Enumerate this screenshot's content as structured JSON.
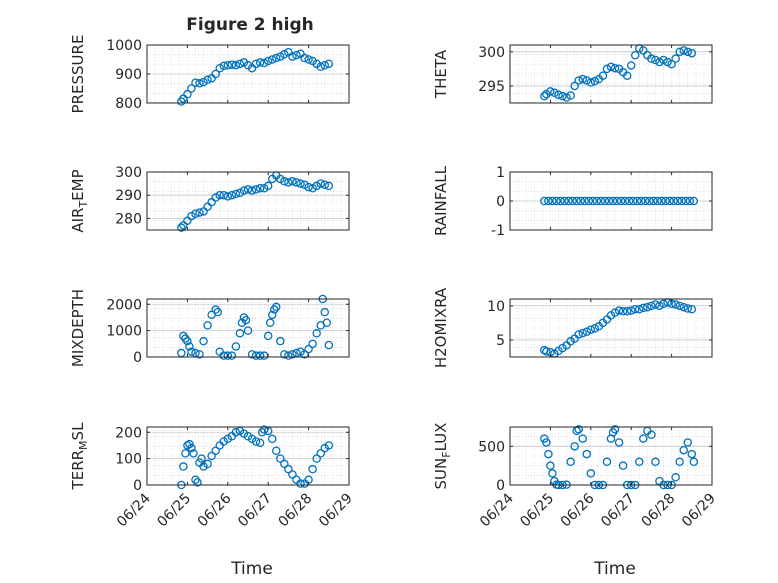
{
  "figure": {
    "title": "Figure 2 high"
  },
  "colors": {
    "marker": "#0072BD",
    "axis": "#262626",
    "grid": "#d9d9d9"
  },
  "chart_data": [
    {
      "type": "scatter",
      "ylabel": "PRESSURE",
      "xlim": [
        0,
        5
      ],
      "ylim": [
        800,
        1000
      ],
      "yticks": [
        800,
        900,
        1000
      ],
      "xticks": [],
      "xlabel": "",
      "grid": true,
      "x": [
        0.85,
        0.9,
        1.0,
        1.1,
        1.2,
        1.3,
        1.4,
        1.5,
        1.6,
        1.7,
        1.8,
        1.9,
        2.0,
        2.1,
        2.2,
        2.3,
        2.4,
        2.5,
        2.6,
        2.7,
        2.8,
        2.9,
        3.0,
        3.1,
        3.2,
        3.3,
        3.4,
        3.5,
        3.6,
        3.7,
        3.8,
        3.9,
        4.0,
        4.1,
        4.2,
        4.3,
        4.4,
        4.5
      ],
      "y": [
        805,
        815,
        830,
        850,
        870,
        868,
        872,
        880,
        885,
        900,
        920,
        928,
        930,
        932,
        930,
        935,
        940,
        930,
        920,
        935,
        940,
        938,
        945,
        950,
        955,
        960,
        968,
        975,
        960,
        965,
        970,
        955,
        950,
        945,
        935,
        925,
        930,
        935
      ]
    },
    {
      "type": "scatter",
      "ylabel": "THETA",
      "xlim": [
        0,
        5
      ],
      "ylim": [
        292.5,
        301
      ],
      "yticks": [
        295,
        300
      ],
      "xticks": [],
      "xlabel": "",
      "grid": true,
      "x": [
        0.85,
        0.9,
        1.0,
        1.1,
        1.2,
        1.3,
        1.4,
        1.5,
        1.6,
        1.7,
        1.8,
        1.9,
        2.0,
        2.1,
        2.2,
        2.3,
        2.4,
        2.5,
        2.6,
        2.7,
        2.8,
        2.9,
        3.0,
        3.1,
        3.2,
        3.3,
        3.4,
        3.5,
        3.6,
        3.7,
        3.8,
        3.9,
        4.0,
        4.1,
        4.2,
        4.3,
        4.4,
        4.5
      ],
      "y": [
        293.5,
        293.8,
        294.2,
        294.0,
        293.7,
        293.5,
        293.3,
        293.6,
        295.0,
        295.8,
        296.0,
        295.8,
        295.5,
        295.7,
        296.0,
        296.5,
        297.5,
        297.8,
        297.6,
        297.5,
        297.0,
        296.5,
        298.0,
        299.5,
        300.5,
        300.2,
        299.5,
        299.0,
        298.8,
        298.5,
        298.8,
        298.5,
        298.2,
        299.0,
        300.0,
        300.2,
        300.0,
        299.8
      ]
    },
    {
      "type": "scatter",
      "ylabel": "AIR_TEMP",
      "xlim": [
        0,
        5
      ],
      "ylim": [
        275,
        300
      ],
      "yticks": [
        280,
        290,
        300
      ],
      "xticks": [],
      "xlabel": "",
      "grid": true,
      "x": [
        0.85,
        0.9,
        1.0,
        1.1,
        1.2,
        1.3,
        1.4,
        1.5,
        1.6,
        1.7,
        1.8,
        1.9,
        2.0,
        2.1,
        2.2,
        2.3,
        2.4,
        2.5,
        2.6,
        2.7,
        2.8,
        2.9,
        3.0,
        3.1,
        3.2,
        3.3,
        3.4,
        3.5,
        3.6,
        3.7,
        3.8,
        3.9,
        4.0,
        4.1,
        4.2,
        4.3,
        4.4,
        4.5
      ],
      "y": [
        276,
        277,
        279,
        281,
        282,
        282.5,
        283,
        285,
        287,
        289,
        290,
        290,
        289.5,
        290,
        290.5,
        291,
        292,
        292.5,
        292,
        292.5,
        293,
        293,
        294,
        297,
        298.5,
        297,
        296,
        295.5,
        296,
        295.5,
        295,
        294.5,
        293.5,
        293,
        294,
        295,
        294.5,
        294
      ]
    },
    {
      "type": "scatter",
      "ylabel": "RAINFALL",
      "xlim": [
        0,
        5
      ],
      "ylim": [
        -1,
        1
      ],
      "yticks": [
        -1,
        0,
        1
      ],
      "xticks": [],
      "xlabel": "",
      "grid": true,
      "x": [
        0.85,
        0.95,
        1.05,
        1.15,
        1.25,
        1.35,
        1.45,
        1.55,
        1.65,
        1.75,
        1.85,
        1.95,
        2.05,
        2.15,
        2.25,
        2.35,
        2.45,
        2.55,
        2.65,
        2.75,
        2.85,
        2.95,
        3.05,
        3.15,
        3.25,
        3.35,
        3.45,
        3.55,
        3.65,
        3.75,
        3.85,
        3.95,
        4.05,
        4.15,
        4.25,
        4.35,
        4.45,
        4.55
      ],
      "y": [
        0,
        0,
        0,
        0,
        0,
        0,
        0,
        0,
        0,
        0,
        0,
        0,
        0,
        0,
        0,
        0,
        0,
        0,
        0,
        0,
        0,
        0,
        0,
        0,
        0,
        0,
        0,
        0,
        0,
        0,
        0,
        0,
        0,
        0,
        0,
        0,
        0,
        0
      ]
    },
    {
      "type": "scatter",
      "ylabel": "MIXDEPTH",
      "xlim": [
        0,
        5
      ],
      "ylim": [
        0,
        2200
      ],
      "yticks": [
        0,
        1000,
        2000
      ],
      "xticks": [],
      "xlabel": "",
      "grid": true,
      "x": [
        0.85,
        0.9,
        0.95,
        1.0,
        1.05,
        1.1,
        1.2,
        1.3,
        1.4,
        1.5,
        1.6,
        1.7,
        1.75,
        1.8,
        1.9,
        2.0,
        2.1,
        2.2,
        2.3,
        2.35,
        2.4,
        2.45,
        2.5,
        2.6,
        2.7,
        2.8,
        2.9,
        3.0,
        3.05,
        3.1,
        3.15,
        3.2,
        3.3,
        3.4,
        3.5,
        3.6,
        3.7,
        3.8,
        3.9,
        4.0,
        4.1,
        4.2,
        4.3,
        4.35,
        4.4,
        4.45,
        4.5
      ],
      "y": [
        150,
        800,
        700,
        600,
        400,
        200,
        150,
        100,
        600,
        1200,
        1600,
        1800,
        1700,
        200,
        50,
        50,
        50,
        400,
        900,
        1300,
        1500,
        1400,
        1000,
        100,
        50,
        50,
        50,
        800,
        1300,
        1600,
        1800,
        1900,
        600,
        100,
        50,
        100,
        150,
        200,
        100,
        300,
        500,
        900,
        1200,
        2200,
        1700,
        1300,
        450
      ]
    },
    {
      "type": "scatter",
      "ylabel": "H2OMIXRA",
      "xlim": [
        0,
        5
      ],
      "ylim": [
        2.5,
        11
      ],
      "yticks": [
        5,
        10
      ],
      "xticks": [],
      "xlabel": "",
      "grid": true,
      "x": [
        0.85,
        0.9,
        1.0,
        1.1,
        1.2,
        1.3,
        1.4,
        1.5,
        1.6,
        1.7,
        1.8,
        1.9,
        2.0,
        2.1,
        2.2,
        2.3,
        2.4,
        2.5,
        2.6,
        2.7,
        2.8,
        2.9,
        3.0,
        3.1,
        3.2,
        3.3,
        3.4,
        3.5,
        3.6,
        3.7,
        3.8,
        3.9,
        4.0,
        4.1,
        4.2,
        4.3,
        4.4,
        4.5
      ],
      "y": [
        3.5,
        3.3,
        3.2,
        3.0,
        3.4,
        3.8,
        4.2,
        4.8,
        5.2,
        5.8,
        6.0,
        6.2,
        6.5,
        6.7,
        7.0,
        7.5,
        8.0,
        8.6,
        9.0,
        9.3,
        9.2,
        9.2,
        9.3,
        9.5,
        9.5,
        9.7,
        9.8,
        10.0,
        10.2,
        10.0,
        10.3,
        10.5,
        10.3,
        10.2,
        10.0,
        9.8,
        9.6,
        9.5
      ]
    },
    {
      "type": "scatter",
      "ylabel": "TERR_MSL",
      "xlim": [
        0,
        5
      ],
      "ylim": [
        0,
        220
      ],
      "yticks": [
        0,
        100,
        200
      ],
      "xticks": [
        "06/24",
        "06/25",
        "06/26",
        "06/27",
        "06/28",
        "06/29"
      ],
      "xlabel": "Time",
      "grid": true,
      "x": [
        0.85,
        0.9,
        0.95,
        1.0,
        1.05,
        1.1,
        1.15,
        1.2,
        1.25,
        1.3,
        1.35,
        1.4,
        1.5,
        1.6,
        1.7,
        1.8,
        1.9,
        2.0,
        2.1,
        2.2,
        2.3,
        2.4,
        2.5,
        2.6,
        2.7,
        2.8,
        2.85,
        2.9,
        3.0,
        3.1,
        3.2,
        3.3,
        3.4,
        3.5,
        3.6,
        3.7,
        3.8,
        3.9,
        4.0,
        4.1,
        4.2,
        4.3,
        4.4,
        4.5
      ],
      "y": [
        0,
        70,
        120,
        150,
        155,
        140,
        120,
        20,
        10,
        85,
        100,
        70,
        80,
        110,
        130,
        150,
        165,
        175,
        185,
        200,
        205,
        195,
        185,
        175,
        165,
        160,
        200,
        210,
        205,
        175,
        130,
        100,
        80,
        60,
        40,
        20,
        5,
        5,
        20,
        60,
        100,
        120,
        140,
        150
      ]
    },
    {
      "type": "scatter",
      "ylabel": "SUN_FLUX",
      "xlim": [
        0,
        5
      ],
      "ylim": [
        0,
        750
      ],
      "yticks": [
        0,
        500
      ],
      "xticks": [
        "06/24",
        "06/25",
        "06/26",
        "06/27",
        "06/28",
        "06/29"
      ],
      "xlabel": "Time",
      "grid": true,
      "x": [
        0.85,
        0.9,
        0.95,
        1.0,
        1.05,
        1.1,
        1.15,
        1.2,
        1.3,
        1.4,
        1.5,
        1.6,
        1.65,
        1.7,
        1.8,
        1.9,
        2.0,
        2.1,
        2.2,
        2.3,
        2.4,
        2.5,
        2.55,
        2.6,
        2.7,
        2.8,
        2.9,
        3.0,
        3.1,
        3.2,
        3.3,
        3.4,
        3.5,
        3.6,
        3.7,
        3.8,
        3.9,
        4.0,
        4.1,
        4.2,
        4.3,
        4.4,
        4.5,
        4.55
      ],
      "y": [
        600,
        550,
        400,
        250,
        150,
        50,
        5,
        0,
        0,
        5,
        300,
        500,
        700,
        720,
        600,
        400,
        150,
        0,
        0,
        0,
        300,
        600,
        680,
        720,
        550,
        250,
        0,
        0,
        0,
        300,
        600,
        700,
        650,
        300,
        50,
        0,
        0,
        0,
        100,
        300,
        450,
        550,
        400,
        300
      ]
    }
  ]
}
